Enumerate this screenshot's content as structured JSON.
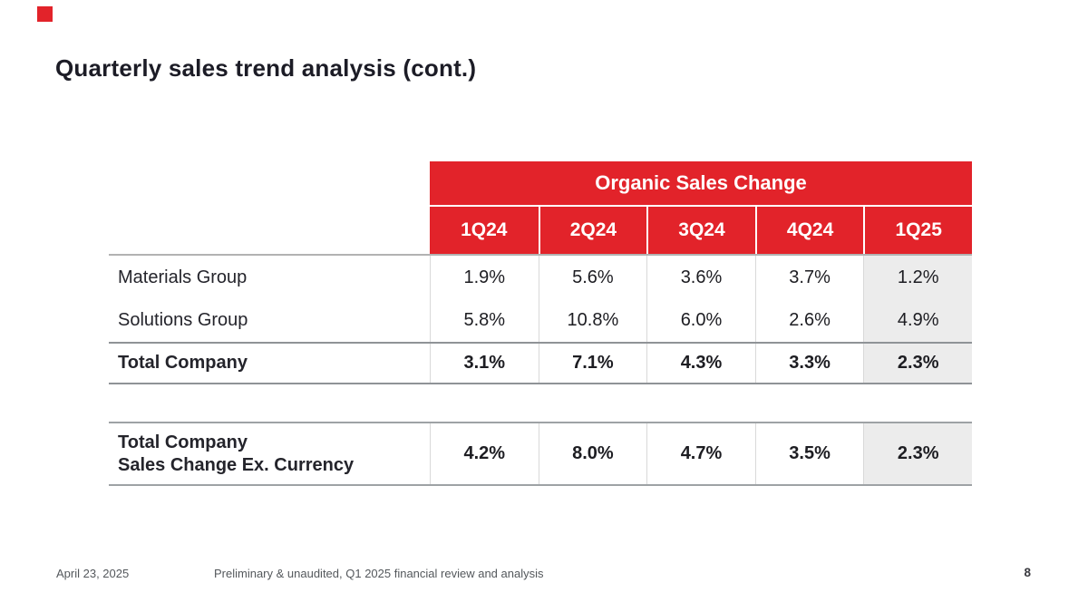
{
  "colors": {
    "accent_red": "#E2232A",
    "highlight_column_gray": "#ECECEC"
  },
  "header": {
    "title": "Quarterly sales trend analysis (cont.)"
  },
  "main_table": {
    "banner_label": "Organic Sales Change",
    "column_headers": [
      "1Q24",
      "2Q24",
      "3Q24",
      "4Q24",
      "1Q25"
    ],
    "rows": [
      {
        "label": "Materials Group",
        "values": [
          "1.9%",
          "5.6%",
          "3.6%",
          "3.7%",
          "1.2%"
        ]
      },
      {
        "label": "Solutions Group",
        "values": [
          "5.8%",
          "10.8%",
          "6.0%",
          "2.6%",
          "4.9%"
        ]
      },
      {
        "label": "Total Company",
        "values": [
          "3.1%",
          "7.1%",
          "4.3%",
          "3.3%",
          "2.3%"
        ]
      }
    ]
  },
  "ex_currency_table": {
    "label_line1": "Total Company",
    "label_line2": "Sales Change Ex. Currency",
    "values": [
      "4.2%",
      "8.0%",
      "4.7%",
      "3.5%",
      "2.3%"
    ]
  },
  "footer": {
    "date": "April 23, 2025",
    "note": "Preliminary & unaudited, Q1 2025 financial review and analysis",
    "page_number": "8"
  }
}
